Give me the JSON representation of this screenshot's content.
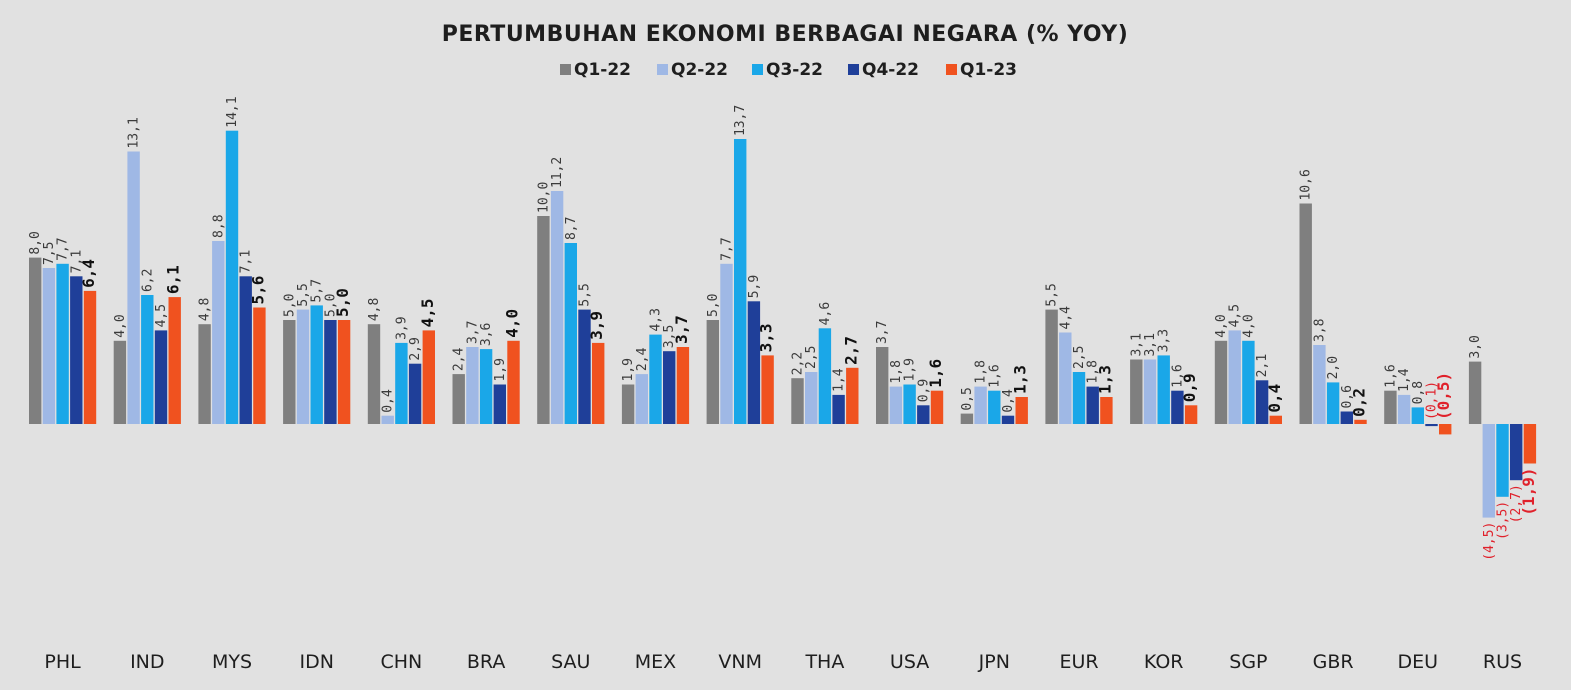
{
  "chart_data": {
    "type": "bar",
    "title": "PERTUMBUHAN EKONOMI BERBAGAI NEGARA (% YOY)",
    "categories": [
      "PHL",
      "IND",
      "MYS",
      "IDN",
      "CHN",
      "BRA",
      "SAU",
      "MEX",
      "VNM",
      "THA",
      "USA",
      "JPN",
      "EUR",
      "KOR",
      "SGP",
      "GBR",
      "DEU",
      "RUS"
    ],
    "series": [
      {
        "name": "Q1-22",
        "color": "#7f7f7f",
        "values": [
          8.0,
          4.0,
          4.8,
          5.0,
          4.8,
          2.4,
          10.0,
          1.9,
          5.0,
          2.2,
          3.7,
          0.5,
          5.5,
          3.1,
          4.0,
          10.6,
          1.6,
          3.0
        ],
        "labels": [
          "8,0",
          "4,0",
          "4,8",
          "5,0",
          "4,8",
          "2,4",
          "10,0",
          "1,9",
          "5,0",
          "2,2",
          "3,7",
          "0,5",
          "5,5",
          "3,1",
          "4,0",
          "10,6",
          "1,6",
          "3,0"
        ]
      },
      {
        "name": "Q2-22",
        "color": "#9fb8e5",
        "values": [
          7.5,
          13.1,
          8.8,
          5.5,
          0.4,
          3.7,
          11.2,
          2.4,
          7.7,
          2.5,
          1.8,
          1.8,
          4.4,
          3.1,
          4.5,
          3.8,
          1.4,
          -4.5
        ],
        "labels": [
          "7,5",
          "13,1",
          "8,8",
          "5,5",
          "0,4",
          "3,7",
          "11,2",
          "2,4",
          "7,7",
          "2,5",
          "1,8",
          "1,8",
          "4,4",
          "3,1",
          "4,5",
          "3,8",
          "1,4",
          "(4,5)"
        ]
      },
      {
        "name": "Q3-22",
        "color": "#1aa7e8",
        "values": [
          7.7,
          6.2,
          14.1,
          5.7,
          3.9,
          3.6,
          8.7,
          4.3,
          13.7,
          4.6,
          1.9,
          1.6,
          2.5,
          3.3,
          4.0,
          2.0,
          0.8,
          -3.5
        ],
        "labels": [
          "7,7",
          "6,2",
          "14,1",
          "5,7",
          "3,9",
          "3,6",
          "8,7",
          "4,3",
          "13,7",
          "4,6",
          "1,9",
          "1,6",
          "2,5",
          "3,3",
          "4,0",
          "2,0",
          "0,8",
          "(3,5)"
        ]
      },
      {
        "name": "Q4-22",
        "color": "#1f3f99",
        "values": [
          7.1,
          4.5,
          7.1,
          5.0,
          2.9,
          1.9,
          5.5,
          3.5,
          5.9,
          1.4,
          0.9,
          0.4,
          1.8,
          1.6,
          2.1,
          0.6,
          -0.1,
          -2.7
        ],
        "labels": [
          "7,1",
          "4,5",
          "7,1",
          "5,0",
          "2,9",
          "1,9",
          "5,5",
          "3,5",
          "5,9",
          "1,4",
          "0,9",
          "0,4",
          "1,8",
          "1,6",
          "2,1",
          "0,6",
          "(0,1)",
          "(2,7)"
        ]
      },
      {
        "name": "Q1-23",
        "color": "#f0521f",
        "values": [
          6.4,
          6.1,
          5.6,
          5.0,
          4.5,
          4.0,
          3.9,
          3.7,
          3.3,
          2.7,
          1.6,
          1.3,
          1.3,
          0.9,
          0.4,
          0.2,
          -0.5,
          -1.9
        ],
        "labels": [
          "6,4",
          "6,1",
          "5,6",
          "5,0",
          "4,5",
          "4,0",
          "3,9",
          "3,7",
          "3,3",
          "2,7",
          "1,6",
          "1,3",
          "1,3",
          "0,9",
          "0,4",
          "0,2",
          "(0,5)",
          "(1,9)"
        ]
      }
    ],
    "ylim": [
      -7,
      15
    ],
    "grid": false,
    "legend_position": "top-center"
  }
}
